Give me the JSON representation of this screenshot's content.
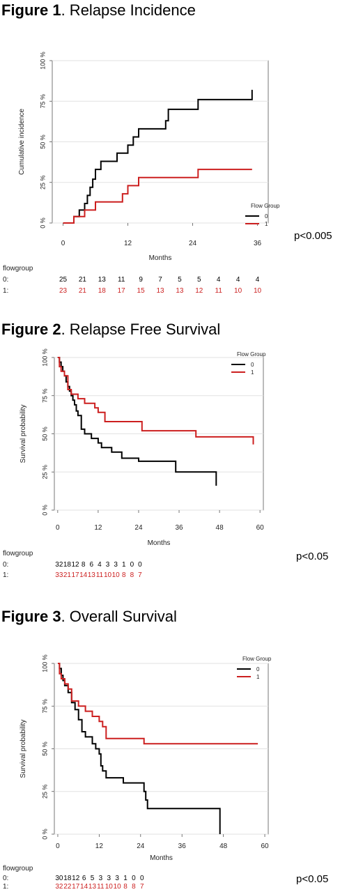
{
  "figures": [
    {
      "title_bold": "Figure 1",
      "title_rest": ". Relapse Incidence",
      "pvalue": "p<0.005",
      "chart_data": {
        "type": "line",
        "step": true,
        "ylabel": "Cumulative incidence",
        "xlabel": "Months",
        "xlim": [
          -2,
          38
        ],
        "ylim": [
          0,
          100
        ],
        "x_ticks": [
          0,
          12,
          24,
          36
        ],
        "y_ticks": [
          0,
          25,
          50,
          75,
          100
        ],
        "y_tick_labels": [
          "0 %",
          "25 %",
          "50 %",
          "75 %",
          "100 %"
        ],
        "grid": "horizontal",
        "legend": {
          "title": "Flow Group",
          "position": "bottom-right",
          "entries": [
            "0",
            "1"
          ]
        },
        "colors": {
          "0": "#000000",
          "1": "#cc1f1f"
        },
        "series": [
          {
            "name": "0",
            "color": "#000000",
            "x": [
              0,
              2,
              3,
              4,
              4.5,
              5,
              5.5,
              6,
              7,
              8,
              10,
              12,
              13,
              14,
              19,
              19.5,
              25,
              35,
              35
            ],
            "y": [
              0,
              4,
              8,
              12,
              17,
              22,
              27,
              33,
              38,
              38,
              43,
              48,
              53,
              58,
              63,
              70,
              76,
              76,
              82
            ]
          },
          {
            "name": "1",
            "color": "#cc1f1f",
            "x": [
              0,
              2,
              4,
              6,
              8,
              10,
              11,
              12,
              14,
              20,
              25,
              35
            ],
            "y": [
              0,
              4,
              8,
              13,
              13,
              13,
              18,
              23,
              28,
              28,
              33,
              33
            ]
          }
        ],
        "risk_table": {
          "label": "flowgroup",
          "rows": [
            {
              "group": "0:",
              "color": "#000000",
              "values": [
                "25",
                "21",
                "13",
                "11",
                "9",
                "7",
                "5",
                "5",
                "4",
                "4",
                "4"
              ]
            },
            {
              "group": "1:",
              "color": "#cc1f1f",
              "values": [
                "23",
                "21",
                "18",
                "17",
                "15",
                "13",
                "13",
                "12",
                "11",
                "10",
                "10"
              ]
            }
          ]
        }
      }
    },
    {
      "title_bold": "Figure 2",
      "title_rest": ". Relapse Free Survival",
      "pvalue": "p<0.05",
      "chart_data": {
        "type": "line",
        "step": true,
        "ylabel": "Survival probability",
        "xlabel": "Months",
        "xlim": [
          -1,
          61
        ],
        "ylim": [
          0,
          100
        ],
        "x_ticks": [
          0,
          12,
          24,
          36,
          48,
          60
        ],
        "y_ticks": [
          0,
          25,
          50,
          75,
          100
        ],
        "y_tick_labels": [
          "0 %",
          "25 %",
          "50 %",
          "75 %",
          "100 %"
        ],
        "grid": "horizontal",
        "legend": {
          "title": "Flow Group",
          "position": "top-right",
          "entries": [
            "0",
            "1"
          ]
        },
        "colors": {
          "0": "#000000",
          "1": "#cc1f1f"
        },
        "series": [
          {
            "name": "0",
            "color": "#000000",
            "x": [
              0,
              0.5,
              1,
              1.5,
              2,
              2.5,
              3,
              3.5,
              4,
              4.5,
              5,
              5.5,
              6,
              7,
              8,
              10,
              12,
              13,
              16,
              19,
              24,
              35,
              47,
              47
            ],
            "y": [
              100,
              97,
              94,
              91,
              88,
              84,
              81,
              78,
              75,
              72,
              69,
              65,
              62,
              53,
              50,
              47,
              44,
              41,
              38,
              34,
              32,
              25,
              21,
              16
            ]
          },
          {
            "name": "1",
            "color": "#cc1f1f",
            "x": [
              0,
              0.5,
              1,
              2,
              3,
              4,
              6,
              8,
              11,
              12,
              14,
              25,
              41,
              58
            ],
            "y": [
              100,
              94,
              91,
              88,
              79,
              76,
              73,
              70,
              67,
              64,
              58,
              52,
              48,
              43
            ]
          }
        ],
        "risk_table": {
          "label": "flowgroup",
          "rows": [
            {
              "group": "0:",
              "color": "#000000",
              "values": [
                "32",
                "18",
                "12",
                "8",
                "6",
                "4",
                "3",
                "3",
                "1",
                "0",
                "0"
              ]
            },
            {
              "group": "1:",
              "color": "#cc1f1f",
              "values": [
                "33",
                "21",
                "17",
                "14",
                "13",
                "11",
                "10",
                "10",
                "8",
                "8",
                "7"
              ]
            }
          ]
        }
      }
    },
    {
      "title_bold": "Figure 3",
      "title_rest": ". Overall Survival",
      "pvalue": "p<0.05",
      "chart_data": {
        "type": "line",
        "step": true,
        "ylabel": "Survival probability",
        "xlabel": "Months",
        "xlim": [
          -1,
          61
        ],
        "ylim": [
          0,
          100
        ],
        "x_ticks": [
          0,
          12,
          24,
          36,
          48,
          60
        ],
        "y_ticks": [
          0,
          25,
          50,
          75,
          100
        ],
        "y_tick_labels": [
          "0 %",
          "25 %",
          "50 %",
          "75 %",
          "100 %"
        ],
        "grid": "horizontal",
        "legend": {
          "title": "Flow Group",
          "position": "top-right",
          "entries": [
            "0",
            "1"
          ]
        },
        "colors": {
          "0": "#000000",
          "1": "#cc1f1f"
        },
        "series": [
          {
            "name": "0",
            "color": "#000000",
            "x": [
              0,
              0.5,
              1,
              1.5,
              2,
              3,
              4,
              5,
              6,
              7,
              8,
              10,
              11,
              12,
              12.5,
              13,
              14,
              19,
              25,
              25.5,
              26,
              47,
              47
            ],
            "y": [
              100,
              97,
              93,
              90,
              87,
              83,
              77,
              73,
              67,
              60,
              57,
              53,
              50,
              47,
              40,
              37,
              33,
              30,
              25,
              20,
              15,
              15,
              0
            ]
          },
          {
            "name": "1",
            "color": "#cc1f1f",
            "x": [
              0,
              0.5,
              1,
              2,
              3,
              4,
              6,
              8,
              10,
              12,
              13,
              14,
              25,
              58
            ],
            "y": [
              100,
              94,
              91,
              88,
              85,
              78,
              75,
              72,
              69,
              66,
              63,
              56,
              53,
              53
            ]
          }
        ],
        "risk_table": {
          "label": "flowgroup",
          "rows": [
            {
              "group": "0:",
              "color": "#000000",
              "values": [
                "30",
                "18",
                "12",
                "6",
                "5",
                "3",
                "3",
                "3",
                "1",
                "0",
                "0"
              ]
            },
            {
              "group": "1:",
              "color": "#cc1f1f",
              "values": [
                "32",
                "22",
                "17",
                "14",
                "13",
                "11",
                "10",
                "10",
                "8",
                "8",
                "7"
              ]
            }
          ]
        }
      }
    }
  ]
}
